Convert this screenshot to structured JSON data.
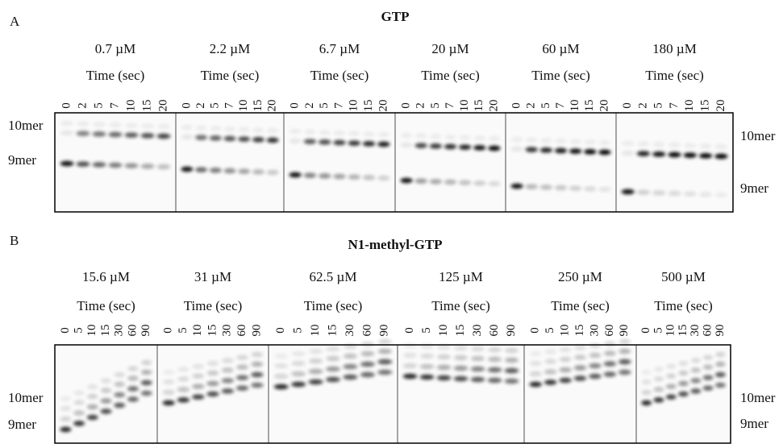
{
  "panels": [
    {
      "label": "A",
      "title": "GTP",
      "groups": [
        {
          "concentration": "0.7 µM",
          "time_label": "Time (sec)",
          "times": [
            "0",
            "2",
            "5",
            "7",
            "10",
            "15",
            "20"
          ]
        },
        {
          "concentration": "2.2 µM",
          "time_label": "Time (sec)",
          "times": [
            "0",
            "2",
            "5",
            "7",
            "10",
            "15",
            "20"
          ]
        },
        {
          "concentration": "6.7 µM",
          "time_label": "Time (sec)",
          "times": [
            "0",
            "2",
            "5",
            "7",
            "10",
            "15",
            "20"
          ]
        },
        {
          "concentration": "20 µM",
          "time_label": "Time (sec)",
          "times": [
            "0",
            "2",
            "5",
            "7",
            "10",
            "15",
            "20"
          ]
        },
        {
          "concentration": "60 µM",
          "time_label": "Time (sec)",
          "times": [
            "0",
            "2",
            "5",
            "7",
            "10",
            "15",
            "20"
          ]
        },
        {
          "concentration": "180 µM",
          "time_label": "Time (sec)",
          "times": [
            "0",
            "2",
            "5",
            "7",
            "10",
            "15",
            "20"
          ]
        }
      ],
      "left_labels": [
        "10mer",
        "9mer"
      ],
      "right_labels": [
        "10mer",
        "9mer"
      ]
    },
    {
      "label": "B",
      "title": "N1-methyl-GTP",
      "groups": [
        {
          "concentration": "15.6 µM",
          "time_label": "Time (sec)",
          "times": [
            "0",
            "5",
            "10",
            "15",
            "30",
            "60",
            "90"
          ]
        },
        {
          "concentration": "31 µM",
          "time_label": "Time (sec)",
          "times": [
            "0",
            "5",
            "10",
            "15",
            "30",
            "60",
            "90"
          ]
        },
        {
          "concentration": "62.5 µM",
          "time_label": "Time (sec)",
          "times": [
            "0",
            "5",
            "10",
            "15",
            "30",
            "60",
            "90"
          ]
        },
        {
          "concentration": "125 µM",
          "time_label": "Time (sec)",
          "times": [
            "0",
            "5",
            "10",
            "15",
            "30",
            "60",
            "90"
          ]
        },
        {
          "concentration": "250 µM",
          "time_label": "Time (sec)",
          "times": [
            "0",
            "5",
            "10",
            "15",
            "30",
            "60",
            "90"
          ]
        },
        {
          "concentration": "500 µM",
          "time_label": "Time (sec)",
          "times": [
            "0",
            "5",
            "10",
            "15",
            "30",
            "60",
            "90"
          ]
        }
      ],
      "left_labels": [
        "10mer",
        "9mer"
      ],
      "right_labels": [
        "10mer",
        "9mer"
      ]
    }
  ]
}
